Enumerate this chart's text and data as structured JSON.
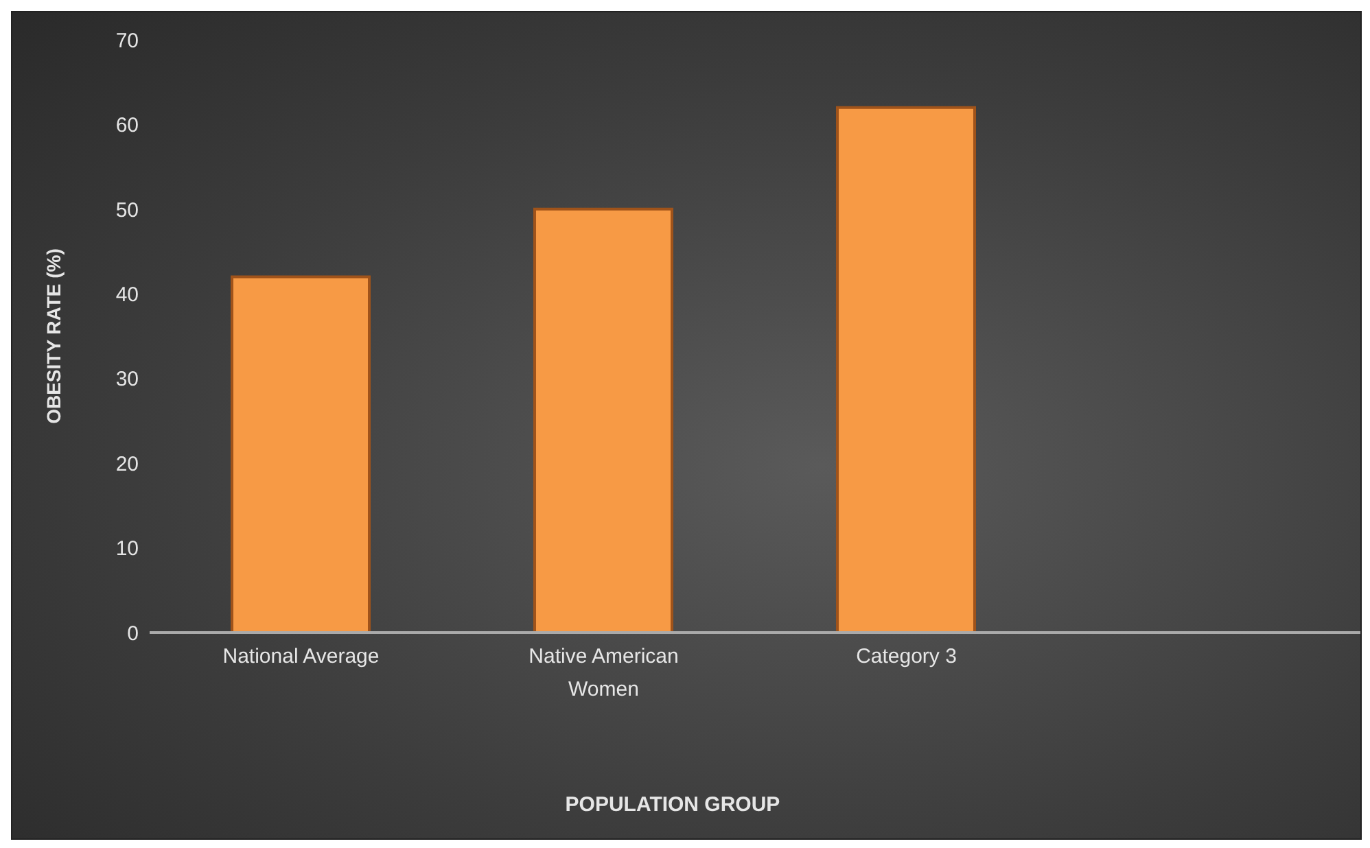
{
  "chart_data": {
    "type": "bar",
    "xlabel": "POPULATION GROUP",
    "ylabel": "OBESITY RATE (%)",
    "categories": [
      "National Average",
      "Native American Women",
      "Category 3",
      null
    ],
    "values": [
      42,
      50,
      62,
      null
    ],
    "color": "#f79a45",
    "ylim": [
      0,
      70
    ],
    "yticks": [
      0,
      10,
      20,
      30,
      40,
      50,
      60,
      70
    ],
    "grid": false,
    "legend": false
  }
}
